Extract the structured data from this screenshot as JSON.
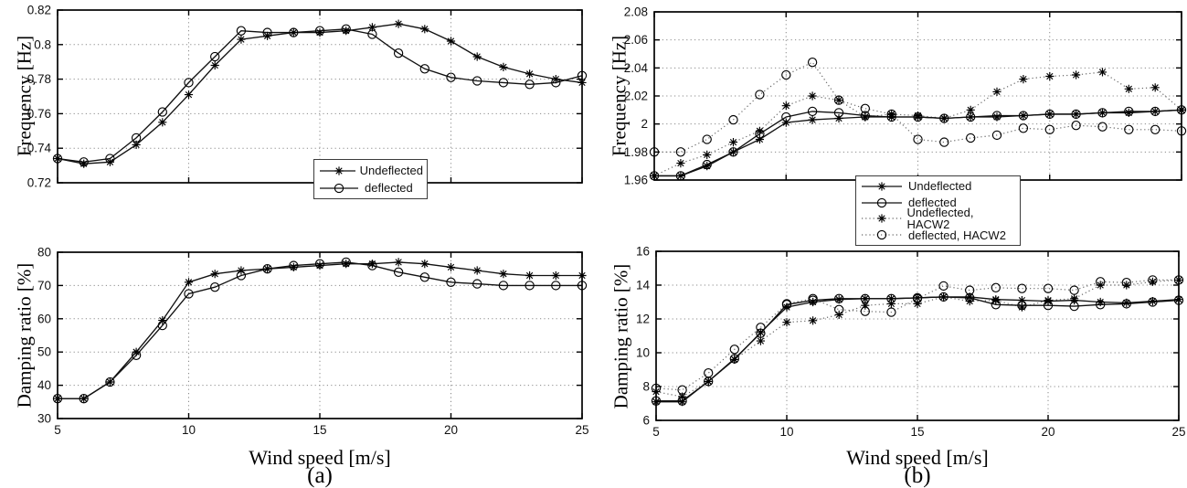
{
  "figure": {
    "background": "#ffffff",
    "captions": {
      "a": "(a)",
      "b": "(b)"
    }
  },
  "axis_labels": {
    "frequency": "Frequency  [Hz]",
    "damping": "Damping ratio  [%]",
    "wind_speed": "Wind speed [m/s]"
  },
  "colors": {
    "axis": "#000000",
    "grid": "#8a8a8a",
    "solid_series": "#111111",
    "dotted_series": "#666666",
    "marker": "#000000",
    "legend_border": "#3c3c3c"
  },
  "legends": {
    "a": {
      "entries": [
        {
          "label": "Undeflected",
          "marker": "star",
          "line": "solid"
        },
        {
          "label": "deflected",
          "marker": "circle",
          "line": "solid"
        }
      ]
    },
    "b": {
      "entries": [
        {
          "label": "Undeflected",
          "marker": "star",
          "line": "solid"
        },
        {
          "label": "deflected",
          "marker": "circle",
          "line": "solid"
        },
        {
          "label": "Undeflected, HACW2",
          "marker": "star",
          "line": "dotted"
        },
        {
          "label": "deflected, HACW2",
          "marker": "circle",
          "line": "dotted"
        }
      ]
    }
  },
  "chart_data": [
    {
      "id": "a-frequency",
      "type": "line",
      "title": "",
      "ylabel": "Frequency [Hz]",
      "xlabel": "",
      "grid": true,
      "xlim": [
        5,
        25
      ],
      "ylim": [
        0.72,
        0.82
      ],
      "xticks": [
        5,
        10,
        15,
        20,
        25
      ],
      "xtick_labels": [
        "5",
        "10",
        "15",
        "20",
        "25"
      ],
      "show_xtick_labels": false,
      "yticks": [
        0.72,
        0.74,
        0.76,
        0.78,
        0.8,
        0.82
      ],
      "ytick_labels": [
        "0.72",
        "0.74",
        "0.76",
        "0.78",
        "0.8",
        "0.82"
      ],
      "x": [
        5,
        6,
        7,
        8,
        9,
        10,
        11,
        12,
        13,
        14,
        15,
        16,
        17,
        18,
        19,
        20,
        21,
        22,
        23,
        24,
        25
      ],
      "series": [
        {
          "name": "Undeflected",
          "marker": "star",
          "line": "solid",
          "values": [
            0.734,
            0.731,
            0.732,
            0.742,
            0.755,
            0.771,
            0.788,
            0.803,
            0.805,
            0.807,
            0.807,
            0.808,
            0.81,
            0.812,
            0.809,
            0.802,
            0.793,
            0.787,
            0.783,
            0.78,
            0.778
          ]
        },
        {
          "name": "deflected",
          "marker": "circle",
          "line": "solid",
          "values": [
            0.734,
            0.732,
            0.734,
            0.746,
            0.761,
            0.778,
            0.793,
            0.808,
            0.807,
            0.807,
            0.808,
            0.809,
            0.806,
            0.795,
            0.786,
            0.781,
            0.779,
            0.778,
            0.777,
            0.778,
            0.782
          ]
        }
      ]
    },
    {
      "id": "a-damping",
      "type": "line",
      "title": "",
      "ylabel": "Damping ratio [%]",
      "xlabel": "Wind speed [m/s]",
      "grid": true,
      "xlim": [
        5,
        25
      ],
      "ylim": [
        30,
        80
      ],
      "xticks": [
        5,
        10,
        15,
        20,
        25
      ],
      "xtick_labels": [
        "5",
        "10",
        "15",
        "20",
        "25"
      ],
      "show_xtick_labels": true,
      "yticks": [
        30,
        40,
        50,
        60,
        70,
        80
      ],
      "ytick_labels": [
        "30",
        "40",
        "50",
        "60",
        "70",
        "80"
      ],
      "x": [
        5,
        6,
        7,
        8,
        9,
        10,
        11,
        12,
        13,
        14,
        15,
        16,
        17,
        18,
        19,
        20,
        21,
        22,
        23,
        24,
        25
      ],
      "series": [
        {
          "name": "Undeflected",
          "marker": "star",
          "line": "solid",
          "values": [
            36,
            36,
            41,
            50,
            59.5,
            71,
            73.5,
            74.5,
            75,
            75.5,
            76,
            76.5,
            76.5,
            77,
            76.5,
            75.5,
            74.5,
            73.5,
            73,
            73,
            73
          ]
        },
        {
          "name": "deflected",
          "marker": "circle",
          "line": "solid",
          "values": [
            36,
            36,
            41,
            49,
            58,
            67.5,
            69.5,
            73,
            75,
            76,
            76.5,
            77,
            76,
            74,
            72.5,
            71,
            70.5,
            70,
            70,
            70,
            70
          ]
        }
      ]
    },
    {
      "id": "b-frequency",
      "type": "line",
      "title": "",
      "ylabel": "Frequency [Hz]",
      "xlabel": "",
      "grid": true,
      "xlim": [
        5,
        25
      ],
      "ylim": [
        1.96,
        2.08
      ],
      "xticks": [
        5,
        10,
        15,
        20,
        25
      ],
      "xtick_labels": [
        "5",
        "10",
        "15",
        "20",
        "25"
      ],
      "show_xtick_labels": false,
      "yticks": [
        1.96,
        1.98,
        2,
        2.02,
        2.04,
        2.06,
        2.08
      ],
      "ytick_labels": [
        "1.96",
        "1.98",
        "2",
        "2.02",
        "2.04",
        "2.06",
        "2.08"
      ],
      "x": [
        5,
        6,
        7,
        8,
        9,
        10,
        11,
        12,
        13,
        14,
        15,
        16,
        17,
        18,
        19,
        20,
        21,
        22,
        23,
        24,
        25
      ],
      "series": [
        {
          "name": "Undeflected",
          "marker": "star",
          "line": "solid",
          "values": [
            1.963,
            1.963,
            1.97,
            1.98,
            1.989,
            2.001,
            2.003,
            2.004,
            2.005,
            2.005,
            2.005,
            2.004,
            2.005,
            2.005,
            2.006,
            2.007,
            2.007,
            2.008,
            2.008,
            2.009,
            2.01
          ]
        },
        {
          "name": "deflected",
          "marker": "circle",
          "line": "solid",
          "values": [
            1.963,
            1.963,
            1.971,
            1.98,
            1.993,
            2.005,
            2.009,
            2.008,
            2.006,
            2.005,
            2.005,
            2.004,
            2.005,
            2.006,
            2.006,
            2.007,
            2.007,
            2.008,
            2.009,
            2.009,
            2.01
          ]
        },
        {
          "name": "Undeflected, HACW2",
          "marker": "star",
          "line": "dotted",
          "values": [
            1.963,
            1.972,
            1.978,
            1.987,
            1.995,
            2.013,
            2.02,
            2.017,
            2.005,
            2.007,
            2.006,
            2.004,
            2.01,
            2.023,
            2.032,
            2.034,
            2.035,
            2.037,
            2.025,
            2.026,
            2.01
          ]
        },
        {
          "name": "deflected, HACW2",
          "marker": "circle",
          "line": "dotted",
          "values": [
            1.98,
            1.98,
            1.989,
            2.003,
            2.021,
            2.035,
            2.044,
            2.017,
            2.011,
            2.007,
            1.989,
            1.987,
            1.99,
            1.992,
            1.997,
            1.996,
            1.999,
            1.998,
            1.996,
            1.996,
            1.995
          ]
        }
      ]
    },
    {
      "id": "b-damping",
      "type": "line",
      "title": "",
      "ylabel": "Damping ratio [%]",
      "xlabel": "Wind speed [m/s]",
      "grid": true,
      "xlim": [
        5,
        25
      ],
      "ylim": [
        6,
        16
      ],
      "xticks": [
        5,
        10,
        15,
        20,
        25
      ],
      "xtick_labels": [
        "5",
        "10",
        "15",
        "20",
        "25"
      ],
      "show_xtick_labels": true,
      "yticks": [
        6,
        8,
        10,
        12,
        14,
        16
      ],
      "ytick_labels": [
        "6",
        "8",
        "10",
        "12",
        "14",
        "16"
      ],
      "x": [
        5,
        6,
        7,
        8,
        9,
        10,
        11,
        12,
        13,
        14,
        15,
        16,
        17,
        18,
        19,
        20,
        21,
        22,
        23,
        24,
        25
      ],
      "series": [
        {
          "name": "Undeflected",
          "marker": "star",
          "line": "solid",
          "values": [
            7.1,
            7.1,
            8.3,
            9.6,
            11.2,
            12.7,
            13.0,
            13.15,
            13.2,
            13.2,
            13.25,
            13.3,
            13.3,
            13.15,
            13.1,
            13.05,
            13.1,
            13.0,
            12.95,
            13.05,
            13.15
          ]
        },
        {
          "name": "deflected",
          "marker": "circle",
          "line": "solid",
          "values": [
            7.15,
            7.15,
            8.3,
            9.65,
            11.15,
            12.85,
            13.1,
            13.2,
            13.2,
            13.2,
            13.25,
            13.3,
            13.25,
            12.85,
            12.8,
            12.8,
            12.75,
            12.85,
            12.9,
            13.0,
            13.1
          ]
        },
        {
          "name": "Undeflected, HACW2",
          "marker": "star",
          "line": "dotted",
          "values": [
            7.7,
            7.4,
            8.3,
            9.6,
            10.7,
            11.8,
            11.9,
            12.25,
            12.8,
            12.9,
            12.9,
            13.3,
            13.05,
            13.1,
            12.7,
            13.1,
            13.2,
            14.0,
            14.0,
            14.2,
            14.3
          ]
        },
        {
          "name": "deflected, HACW2",
          "marker": "circle",
          "line": "dotted",
          "values": [
            7.9,
            7.8,
            8.8,
            10.2,
            11.5,
            12.9,
            13.2,
            12.55,
            12.45,
            12.4,
            13.2,
            13.95,
            13.7,
            13.85,
            13.8,
            13.8,
            13.7,
            14.2,
            14.15,
            14.3,
            14.3
          ]
        }
      ]
    }
  ]
}
